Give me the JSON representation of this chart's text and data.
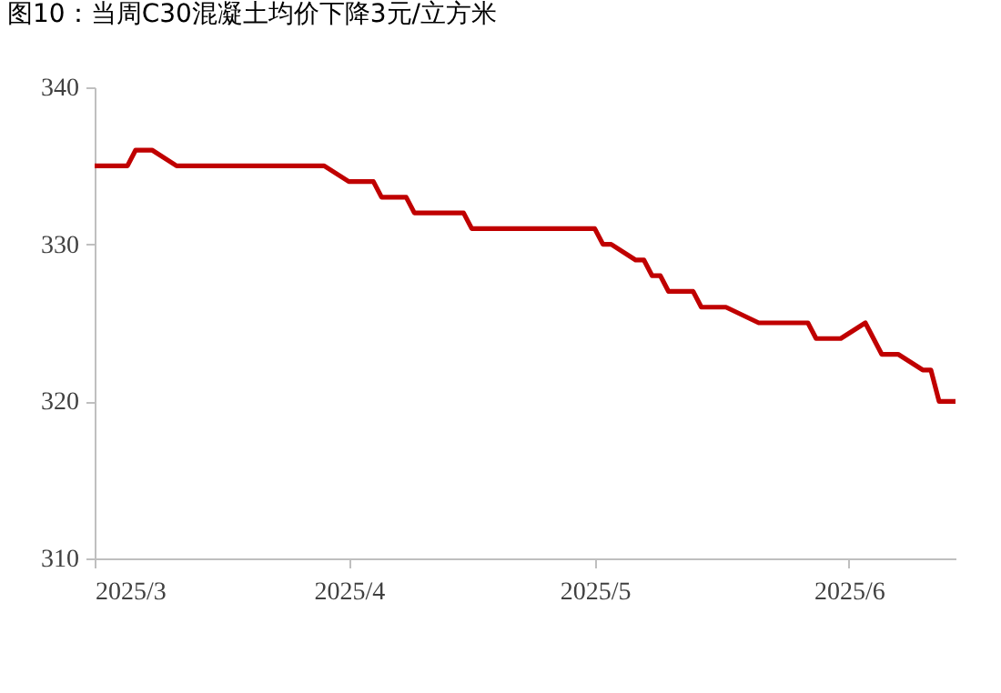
{
  "chart_data": {
    "type": "line",
    "title": "图10：当周C30混凝土均价下降3元/立方米",
    "x": [
      "2025-03-01",
      "2025-03-05",
      "2025-03-06",
      "2025-03-08",
      "2025-03-11",
      "2025-03-29",
      "2025-04-01",
      "2025-04-04",
      "2025-04-05",
      "2025-04-08",
      "2025-04-09",
      "2025-04-15",
      "2025-04-16",
      "2025-05-01",
      "2025-05-02",
      "2025-05-03",
      "2025-05-06",
      "2025-05-07",
      "2025-05-08",
      "2025-05-09",
      "2025-05-10",
      "2025-05-13",
      "2025-05-14",
      "2025-05-17",
      "2025-05-21",
      "2025-05-27",
      "2025-05-28",
      "2025-05-31",
      "2025-06-03",
      "2025-06-05",
      "2025-06-07",
      "2025-06-10",
      "2025-06-11",
      "2025-06-12",
      "2025-06-14"
    ],
    "series": [
      {
        "color": "#c00000",
        "values": [
          335,
          335,
          336,
          336,
          335,
          335,
          334,
          334,
          333,
          333,
          332,
          332,
          331,
          331,
          330,
          330,
          329,
          329,
          328,
          328,
          327,
          327,
          326,
          326,
          325,
          325,
          324,
          324,
          325,
          323,
          323,
          322,
          322,
          320,
          320
        ]
      }
    ],
    "xlim": [
      "2025-03-01",
      "2025-06-14"
    ],
    "xticks": [
      {
        "value": "2025-03-01",
        "label": "2025/3"
      },
      {
        "value": "2025-04-01",
        "label": "2025/4"
      },
      {
        "value": "2025-05-01",
        "label": "2025/5"
      },
      {
        "value": "2025-06-01",
        "label": "2025/6"
      }
    ],
    "ylim": [
      310,
      340
    ],
    "yticks": [
      310,
      320,
      330,
      340
    ],
    "grid": false
  }
}
